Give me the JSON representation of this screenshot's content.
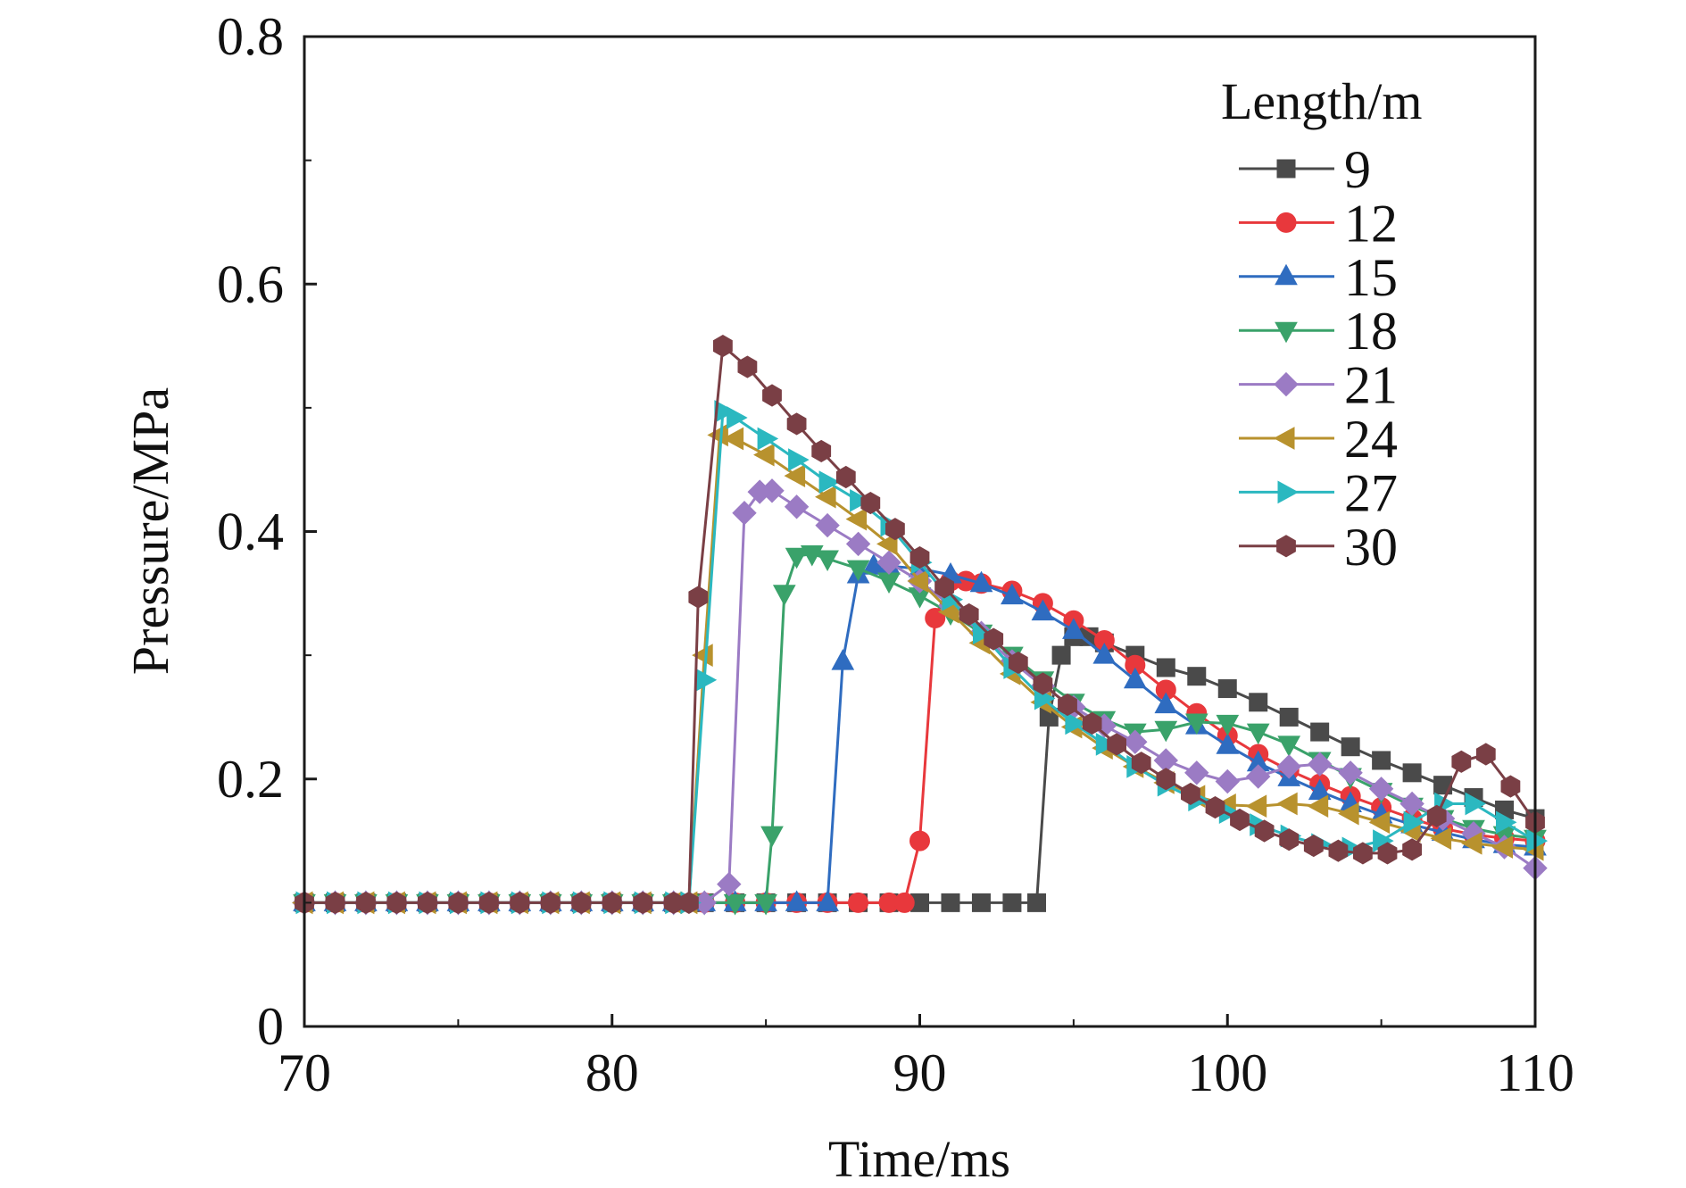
{
  "chart_data": {
    "type": "line",
    "title": "",
    "xlabel": "Time/ms",
    "ylabel": "Pressure/MPa",
    "xlim": [
      70,
      110
    ],
    "ylim": [
      0,
      0.8
    ],
    "xticks": [
      70,
      80,
      90,
      100,
      110
    ],
    "xtick_labels": [
      "70",
      "80",
      "90",
      "100",
      "110"
    ],
    "yticks": [
      0,
      0.2,
      0.4,
      0.6,
      0.8
    ],
    "ytick_labels": [
      "0",
      "0.2",
      "0.4",
      "0.6",
      "0.8"
    ],
    "grid": false,
    "legend": {
      "title": "Length/m",
      "position": "top-right"
    },
    "series": [
      {
        "name": "9",
        "color": "#4a4a4a",
        "marker": "square",
        "x": [
          70,
          71,
          72,
          73,
          74,
          75,
          76,
          77,
          78,
          79,
          80,
          81,
          82,
          83,
          84,
          85,
          86,
          87,
          88,
          89,
          90,
          91,
          92,
          93,
          93.8,
          94.2,
          94.6,
          95,
          95.5,
          96,
          97,
          98,
          99,
          100,
          101,
          102,
          103,
          104,
          105,
          106,
          107,
          108,
          109,
          110
        ],
        "y": [
          0.1,
          0.1,
          0.1,
          0.1,
          0.1,
          0.1,
          0.1,
          0.1,
          0.1,
          0.1,
          0.1,
          0.1,
          0.1,
          0.1,
          0.1,
          0.1,
          0.1,
          0.1,
          0.1,
          0.1,
          0.1,
          0.1,
          0.1,
          0.1,
          0.1,
          0.25,
          0.3,
          0.315,
          0.315,
          0.31,
          0.3,
          0.29,
          0.283,
          0.273,
          0.262,
          0.25,
          0.238,
          0.226,
          0.215,
          0.205,
          0.195,
          0.185,
          0.175,
          0.168
        ]
      },
      {
        "name": "12",
        "color": "#e8383c",
        "marker": "circle",
        "x": [
          70,
          71,
          72,
          73,
          74,
          75,
          76,
          77,
          78,
          79,
          80,
          81,
          82,
          83,
          84,
          85,
          86,
          87,
          88,
          89,
          89.5,
          90,
          90.5,
          91,
          91.5,
          92,
          93,
          94,
          95,
          96,
          97,
          98,
          99,
          100,
          101,
          102,
          103,
          104,
          105,
          106,
          107,
          108,
          109,
          110
        ],
        "y": [
          0.1,
          0.1,
          0.1,
          0.1,
          0.1,
          0.1,
          0.1,
          0.1,
          0.1,
          0.1,
          0.1,
          0.1,
          0.1,
          0.1,
          0.1,
          0.1,
          0.1,
          0.1,
          0.1,
          0.1,
          0.1,
          0.15,
          0.33,
          0.36,
          0.36,
          0.358,
          0.352,
          0.342,
          0.328,
          0.312,
          0.292,
          0.272,
          0.253,
          0.235,
          0.22,
          0.207,
          0.196,
          0.186,
          0.177,
          0.168,
          0.16,
          0.155,
          0.152,
          0.15
        ]
      },
      {
        "name": "15",
        "color": "#2f6cc0",
        "marker": "triangle-up",
        "x": [
          70,
          71,
          72,
          73,
          74,
          75,
          76,
          77,
          78,
          79,
          80,
          81,
          82,
          83,
          84,
          85,
          86,
          87,
          87.5,
          88,
          88.5,
          89,
          90,
          91,
          92,
          93,
          94,
          95,
          96,
          97,
          98,
          99,
          100,
          101,
          102,
          103,
          104,
          105,
          106,
          107,
          108,
          109,
          110
        ],
        "y": [
          0.1,
          0.1,
          0.1,
          0.1,
          0.1,
          0.1,
          0.1,
          0.1,
          0.1,
          0.1,
          0.1,
          0.1,
          0.1,
          0.1,
          0.1,
          0.1,
          0.1,
          0.1,
          0.295,
          0.365,
          0.372,
          0.372,
          0.37,
          0.365,
          0.358,
          0.348,
          0.335,
          0.32,
          0.3,
          0.28,
          0.26,
          0.243,
          0.227,
          0.213,
          0.201,
          0.19,
          0.18,
          0.171,
          0.163,
          0.157,
          0.151,
          0.147,
          0.145
        ]
      },
      {
        "name": "18",
        "color": "#3aa26a",
        "marker": "triangle-down",
        "x": [
          70,
          71,
          72,
          73,
          74,
          75,
          76,
          77,
          78,
          79,
          80,
          81,
          82,
          83,
          84,
          85,
          85.2,
          85.6,
          86,
          86.5,
          87,
          88,
          89,
          90,
          91,
          92,
          93,
          94,
          95,
          96,
          97,
          98,
          99,
          100,
          101,
          102,
          103,
          104,
          105,
          106,
          107,
          108,
          109,
          110
        ],
        "y": [
          0.1,
          0.1,
          0.1,
          0.1,
          0.1,
          0.1,
          0.1,
          0.1,
          0.1,
          0.1,
          0.1,
          0.1,
          0.1,
          0.1,
          0.1,
          0.1,
          0.155,
          0.35,
          0.38,
          0.382,
          0.378,
          0.37,
          0.36,
          0.348,
          0.334,
          0.318,
          0.3,
          0.28,
          0.262,
          0.248,
          0.238,
          0.24,
          0.246,
          0.245,
          0.238,
          0.228,
          0.215,
          0.202,
          0.19,
          0.178,
          0.168,
          0.16,
          0.155,
          0.152
        ]
      },
      {
        "name": "21",
        "color": "#9b7bc4",
        "marker": "diamond",
        "x": [
          70,
          71,
          72,
          73,
          74,
          75,
          76,
          77,
          78,
          79,
          80,
          81,
          82,
          83,
          83.8,
          84.3,
          84.8,
          85.2,
          86,
          87,
          88,
          89,
          90,
          91,
          92,
          93,
          94,
          95,
          96,
          97,
          98,
          99,
          100,
          101,
          102,
          103,
          104,
          105,
          106,
          107,
          108,
          109,
          110
        ],
        "y": [
          0.1,
          0.1,
          0.1,
          0.1,
          0.1,
          0.1,
          0.1,
          0.1,
          0.1,
          0.1,
          0.1,
          0.1,
          0.1,
          0.1,
          0.115,
          0.415,
          0.432,
          0.433,
          0.42,
          0.405,
          0.39,
          0.375,
          0.36,
          0.34,
          0.318,
          0.295,
          0.275,
          0.258,
          0.243,
          0.23,
          0.215,
          0.205,
          0.198,
          0.202,
          0.21,
          0.212,
          0.205,
          0.192,
          0.18,
          0.168,
          0.156,
          0.145,
          0.128
        ]
      },
      {
        "name": "24",
        "color": "#b8922e",
        "marker": "triangle-left",
        "x": [
          70,
          71,
          72,
          73,
          74,
          75,
          76,
          77,
          78,
          79,
          80,
          81,
          82,
          82.5,
          83,
          83.5,
          84,
          85,
          86,
          87,
          88,
          89,
          90,
          91,
          92,
          93,
          94,
          95,
          96,
          97,
          98,
          99,
          100,
          101,
          102,
          103,
          104,
          105,
          106,
          107,
          108,
          109,
          110
        ],
        "y": [
          0.1,
          0.1,
          0.1,
          0.1,
          0.1,
          0.1,
          0.1,
          0.1,
          0.1,
          0.1,
          0.1,
          0.1,
          0.1,
          0.1,
          0.3,
          0.478,
          0.475,
          0.462,
          0.445,
          0.428,
          0.41,
          0.39,
          0.36,
          0.335,
          0.31,
          0.285,
          0.262,
          0.242,
          0.225,
          0.21,
          0.197,
          0.186,
          0.179,
          0.178,
          0.18,
          0.178,
          0.172,
          0.165,
          0.158,
          0.152,
          0.148,
          0.145,
          0.143
        ]
      },
      {
        "name": "27",
        "color": "#2bb8c0",
        "marker": "triangle-right",
        "x": [
          70,
          71,
          72,
          73,
          74,
          75,
          76,
          77,
          78,
          79,
          80,
          81,
          82,
          82.5,
          83,
          83.6,
          84,
          85,
          86,
          87,
          88,
          89,
          90,
          91,
          92,
          93,
          94,
          95,
          96,
          97,
          98,
          99,
          100,
          101,
          102,
          103,
          104,
          105,
          106,
          107,
          108,
          109,
          110
        ],
        "y": [
          0.1,
          0.1,
          0.1,
          0.1,
          0.1,
          0.1,
          0.1,
          0.1,
          0.1,
          0.1,
          0.1,
          0.1,
          0.1,
          0.1,
          0.28,
          0.497,
          0.492,
          0.475,
          0.458,
          0.44,
          0.425,
          0.405,
          0.375,
          0.345,
          0.318,
          0.29,
          0.265,
          0.245,
          0.228,
          0.21,
          0.195,
          0.183,
          0.173,
          0.163,
          0.154,
          0.147,
          0.144,
          0.15,
          0.165,
          0.18,
          0.18,
          0.165,
          0.15
        ]
      },
      {
        "name": "30",
        "color": "#7a3f45",
        "marker": "hexagon",
        "x": [
          70,
          71,
          72,
          73,
          74,
          75,
          76,
          77,
          78,
          79,
          80,
          81,
          82,
          82.5,
          82.8,
          83.6,
          84.4,
          85.2,
          86,
          86.8,
          87.6,
          88.4,
          89.2,
          90,
          90.8,
          91.6,
          92.4,
          93.2,
          94,
          94.8,
          95.6,
          96.4,
          97.2,
          98,
          98.8,
          99.6,
          100.4,
          101.2,
          102,
          102.8,
          103.6,
          104.4,
          105.2,
          106,
          106.8,
          107.6,
          108.4,
          109.2,
          110
        ],
        "y": [
          0.1,
          0.1,
          0.1,
          0.1,
          0.1,
          0.1,
          0.1,
          0.1,
          0.1,
          0.1,
          0.1,
          0.1,
          0.1,
          0.1,
          0.347,
          0.55,
          0.533,
          0.51,
          0.487,
          0.465,
          0.444,
          0.423,
          0.402,
          0.379,
          0.355,
          0.333,
          0.313,
          0.294,
          0.277,
          0.26,
          0.245,
          0.228,
          0.213,
          0.2,
          0.188,
          0.177,
          0.167,
          0.158,
          0.151,
          0.146,
          0.142,
          0.14,
          0.14,
          0.143,
          0.17,
          0.214,
          0.22,
          0.194,
          0.165
        ]
      }
    ]
  }
}
